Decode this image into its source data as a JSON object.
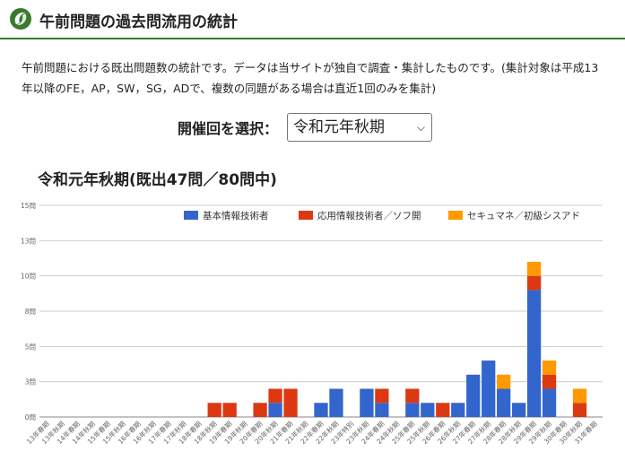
{
  "header": {
    "title": "午前問題の過去問流用の統計"
  },
  "description": "午前問題における既出問題数の統計です。データは当サイトが独自で調査・集計したものです。(集計対象は平成13年以降のFE，AP，SW，SG，ADで、複数の同題がある場合は直近1回のみを集計)",
  "selector": {
    "label": "開催回を選択：",
    "value": "令和元年秋期"
  },
  "colors": {
    "accent": "#3a7a2e"
  },
  "chart_data": {
    "type": "bar",
    "stacked": true,
    "title": "令和元年秋期(既出47問／80問中)",
    "categories": [
      "13年春期",
      "13年秋期",
      "14年春期",
      "14年秋期",
      "15年春期",
      "15年秋期",
      "16年春期",
      "16年秋期",
      "17年春期",
      "17年秋期",
      "18年春期",
      "18年秋期",
      "19年春期",
      "19年秋期",
      "20年春期",
      "20年秋期",
      "21年春期",
      "21年秋期",
      "22年春期",
      "22年秋期",
      "23年特別",
      "23年秋期",
      "24年春期",
      "24年秋期",
      "25年春期",
      "25年秋期",
      "26年春期",
      "26年秋期",
      "27年春期",
      "27年秋期",
      "28年春期",
      "28年秋期",
      "29年春期",
      "29年秋期",
      "30年春期",
      "30年秋期",
      "31年春期"
    ],
    "series": [
      {
        "name": "基本情報技術者",
        "color": "#3366cc",
        "values": [
          0,
          0,
          0,
          0,
          0,
          0,
          0,
          0,
          0,
          0,
          0,
          0,
          0,
          0,
          0,
          1,
          0,
          0,
          1,
          2,
          0,
          2,
          1,
          0,
          1,
          1,
          0,
          1,
          3,
          4,
          2,
          1,
          9,
          2,
          0,
          0,
          0
        ]
      },
      {
        "name": "応用情報技術者／ソフ開",
        "color": "#dc3912",
        "values": [
          0,
          0,
          0,
          0,
          0,
          0,
          0,
          0,
          0,
          0,
          0,
          1,
          1,
          0,
          1,
          1,
          2,
          0,
          0,
          0,
          0,
          0,
          1,
          0,
          1,
          0,
          1,
          0,
          0,
          0,
          0,
          0,
          1,
          1,
          0,
          1,
          0
        ]
      },
      {
        "name": "セキュマネ／初級シスアド",
        "color": "#ff9900",
        "values": [
          0,
          0,
          0,
          0,
          0,
          0,
          0,
          0,
          0,
          0,
          0,
          0,
          0,
          0,
          0,
          0,
          0,
          0,
          0,
          0,
          0,
          0,
          0,
          0,
          0,
          0,
          0,
          0,
          0,
          0,
          1,
          0,
          1,
          1,
          0,
          1,
          0
        ]
      }
    ],
    "yticks": [
      "0問",
      "3問",
      "5問",
      "8問",
      "10問",
      "13問",
      "15問"
    ],
    "ylim": [
      0,
      15
    ],
    "grid": true,
    "legend": "top-right"
  }
}
